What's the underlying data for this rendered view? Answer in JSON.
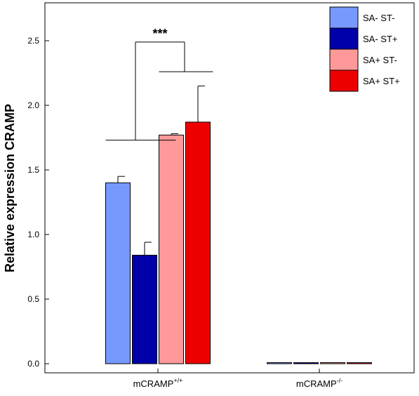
{
  "chart_data": {
    "type": "bar",
    "ylabel": "Relative expression CRAMP",
    "xlabel": "",
    "ylim": [
      0,
      2.7
    ],
    "yticks": [
      0.0,
      0.5,
      1.0,
      1.5,
      2.0,
      2.5
    ],
    "ytick_labels": [
      "0.0",
      "0.5",
      "1.0",
      "1.5",
      "2.0",
      "2.5"
    ],
    "categories": [
      {
        "base": "mCRAMP",
        "sup": "+/+"
      },
      {
        "base": "mCRAMP",
        "sup": "-/-"
      }
    ],
    "series": [
      {
        "name": "SA- ST-",
        "color": "#7799ff",
        "values": [
          1.4,
          0.0
        ],
        "errors": [
          0.05,
          0.0
        ]
      },
      {
        "name": "SA- ST+",
        "color": "#0000aa",
        "values": [
          0.84,
          0.0
        ],
        "errors": [
          0.1,
          0.0
        ]
      },
      {
        "name": "SA+ ST-",
        "color": "#ff9999",
        "values": [
          1.77,
          0.0
        ],
        "errors": [
          0.01,
          0.0
        ]
      },
      {
        "name": "SA+ ST+",
        "color": "#ee0000",
        "values": [
          1.87,
          0.0
        ],
        "errors": [
          0.28,
          0.0
        ]
      }
    ],
    "legend_position": "top-right",
    "grid": false,
    "annotations": [
      {
        "text": "***",
        "compares": [
          "SA- group",
          "SA+ group"
        ],
        "category": "mCRAMP+/+"
      }
    ]
  }
}
